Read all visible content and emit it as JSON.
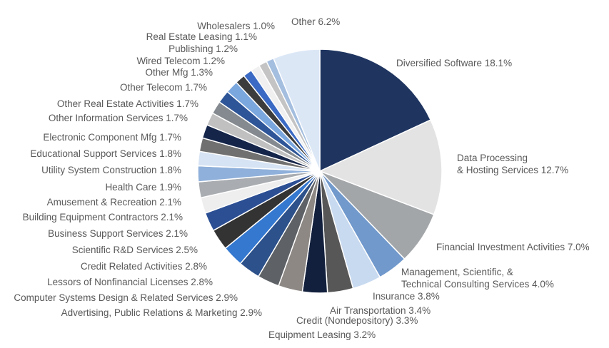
{
  "chart_data": {
    "type": "pie",
    "title": "",
    "slices": [
      {
        "label": "Diversified Software 18.1%",
        "value": 18.1,
        "color": "#1f3560"
      },
      {
        "label": "Data Processing & Hosting Services 12.7%",
        "value": 12.7,
        "color": "#e3e3e3"
      },
      {
        "label": "Financial Investment Activities  7.0%",
        "value": 7.0,
        "color": "#a3a6a9"
      },
      {
        "label": "Management, Scientific, & Technical Consulting Services 4.0%",
        "value": 4.0,
        "color": "#7199cc"
      },
      {
        "label": "Insurance 3.8%",
        "value": 3.8,
        "color": "#c8daf0"
      },
      {
        "label": "Air Transportation 3.4%",
        "value": 3.4,
        "color": "#575757"
      },
      {
        "label": "Credit (Nondepository) 3.3%",
        "value": 3.3,
        "color": "#13203d"
      },
      {
        "label": "Equipment Leasing 3.2%",
        "value": 3.2,
        "color": "#8d8884"
      },
      {
        "label": "Advertising, Public Relations & Marketing 2.9%",
        "value": 2.9,
        "color": "#5e6266"
      },
      {
        "label": "Computer Systems Design & Related Services 2.9%",
        "value": 2.9,
        "color": "#2d518a"
      },
      {
        "label": "Lessors of Nonfinancial Licenses 2.8%",
        "value": 2.8,
        "color": "#3478d0"
      },
      {
        "label": "Credit Related Activities 2.8%",
        "value": 2.8,
        "color": "#333333"
      },
      {
        "label": "Scientific R&D Services 2.5%",
        "value": 2.5,
        "color": "#2c4f94"
      },
      {
        "label": "Business Support Services 2.1%",
        "value": 2.1,
        "color": "#eeeeee"
      },
      {
        "label": "Building Equipment Contractors 2.1%",
        "value": 2.1,
        "color": "#a9adb1"
      },
      {
        "label": "Amusement & Recreation 2.1%",
        "value": 2.1,
        "color": "#8fb0da"
      },
      {
        "label": "Health Care 1.9%",
        "value": 1.9,
        "color": "#d6e3f4"
      },
      {
        "label": "Utility System Construction 1.8%",
        "value": 1.8,
        "color": "#707070"
      },
      {
        "label": "Educational Support Services 1.8%",
        "value": 1.8,
        "color": "#15254a"
      },
      {
        "label": "Electronic Component Mfg 1.7%",
        "value": 1.7,
        "color": "#c0c0c0"
      },
      {
        "label": "Other Information Services  1.7%",
        "value": 1.7,
        "color": "#848a8f"
      },
      {
        "label": "Other Real Estate Activities 1.7%",
        "value": 1.7,
        "color": "#2e5597"
      },
      {
        "label": "Other Telecom 1.7%",
        "value": 1.7,
        "color": "#7ba7df"
      },
      {
        "label": "Other Mfg 1.3%",
        "value": 1.3,
        "color": "#3c3c3c"
      },
      {
        "label": "Wired Telecom 1.2%",
        "value": 1.2,
        "color": "#3a6ac4"
      },
      {
        "label": "Publishing 1.2%",
        "value": 1.2,
        "color": "#f0f0f0"
      },
      {
        "label": "Real Estate Leasing 1.1%",
        "value": 1.1,
        "color": "#c4c4c4"
      },
      {
        "label": "Wholesalers 1.0%",
        "value": 1.0,
        "color": "#a4bedf"
      },
      {
        "label": "Other 6.2%",
        "value": 6.2,
        "color": "#dce7f6"
      }
    ]
  }
}
